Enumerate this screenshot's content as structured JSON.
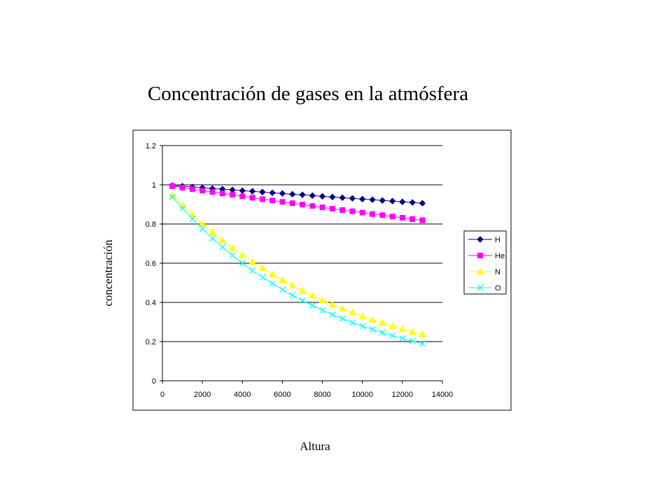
{
  "slide": {
    "title": "Concentración de gases en la atmósfera",
    "ylabel": "concentración",
    "xlabel": "Altura"
  },
  "chart_data": {
    "type": "line",
    "title": "Concentración de gases en la atmósfera",
    "xlabel": "Altura",
    "ylabel": "concentración",
    "xlim": [
      0,
      14000
    ],
    "ylim": [
      0,
      1.2
    ],
    "xticks": [
      0,
      2000,
      4000,
      6000,
      8000,
      10000,
      12000,
      14000
    ],
    "yticks": [
      0,
      0.2,
      0.4,
      0.6,
      0.8,
      1,
      1.2
    ],
    "ytick_labels": [
      "0",
      "0.2",
      "0.4",
      "0.6",
      "0.8",
      "1",
      "1.2"
    ],
    "grid": "horizontal",
    "legend_position": "right",
    "x": [
      500,
      1000,
      1500,
      2000,
      2500,
      3000,
      3500,
      4000,
      4500,
      5000,
      5500,
      6000,
      6500,
      7000,
      7500,
      8000,
      8500,
      9000,
      9500,
      10000,
      10500,
      11000,
      11500,
      12000,
      12500,
      13000
    ],
    "series": [
      {
        "name": "H",
        "color": "#000080",
        "marker": "diamond",
        "values": [
          0.996,
          0.993,
          0.989,
          0.985,
          0.981,
          0.978,
          0.974,
          0.97,
          0.967,
          0.963,
          0.959,
          0.956,
          0.952,
          0.949,
          0.945,
          0.941,
          0.938,
          0.934,
          0.931,
          0.927,
          0.924,
          0.92,
          0.917,
          0.913,
          0.91,
          0.906
        ]
      },
      {
        "name": "He",
        "color": "#FF00FF",
        "marker": "square",
        "values": [
          0.993,
          0.985,
          0.978,
          0.97,
          0.963,
          0.956,
          0.949,
          0.941,
          0.934,
          0.927,
          0.92,
          0.913,
          0.906,
          0.899,
          0.892,
          0.885,
          0.878,
          0.871,
          0.865,
          0.858,
          0.851,
          0.845,
          0.838,
          0.832,
          0.825,
          0.819
        ]
      },
      {
        "name": "N",
        "color": "#FFFF00",
        "marker": "triangle",
        "values": [
          0.946,
          0.895,
          0.847,
          0.801,
          0.757,
          0.716,
          0.678,
          0.641,
          0.606,
          0.574,
          0.543,
          0.513,
          0.486,
          0.459,
          0.434,
          0.411,
          0.389,
          0.368,
          0.348,
          0.329,
          0.311,
          0.295,
          0.279,
          0.264,
          0.249,
          0.236
        ]
      },
      {
        "name": "O",
        "color": "#00FFFF",
        "marker": "x",
        "values": [
          0.938,
          0.88,
          0.826,
          0.775,
          0.727,
          0.682,
          0.64,
          0.6,
          0.563,
          0.528,
          0.496,
          0.465,
          0.436,
          0.409,
          0.384,
          0.36,
          0.338,
          0.317,
          0.297,
          0.279,
          0.262,
          0.245,
          0.23,
          0.216,
          0.203,
          0.19
        ]
      }
    ]
  }
}
